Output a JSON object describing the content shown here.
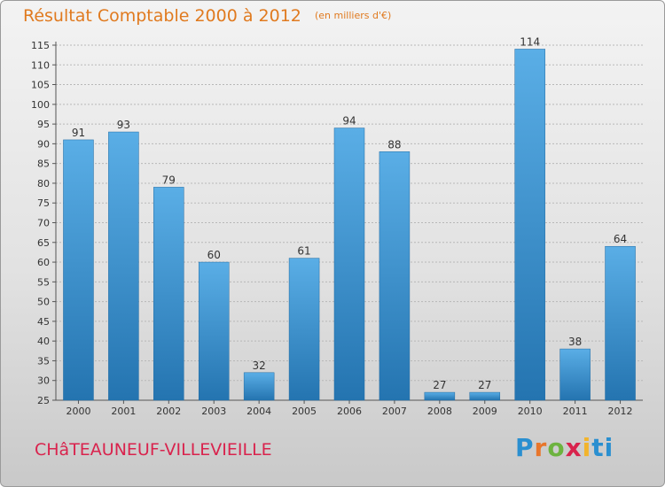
{
  "header": {
    "title": "Résultat Comptable 2000 à 2012",
    "unit": "(en milliers d'€)"
  },
  "footer": {
    "commune": "CHâTEAUNEUF-VILLEVIEILLE",
    "logo_letters": [
      "P",
      "r",
      "o",
      "x",
      "i",
      "ti"
    ]
  },
  "colors": {
    "bar_light": "#5aaee6",
    "bar_dark": "#2474b0",
    "title": "#e07a1f",
    "commune": "#d9234d",
    "grid": "#b8b8b8"
  },
  "chart_data": {
    "type": "bar",
    "title": "Résultat Comptable 2000 à 2012",
    "subtitle": "(en milliers d'€)",
    "categories": [
      "2000",
      "2001",
      "2002",
      "2003",
      "2004",
      "2005",
      "2006",
      "2007",
      "2008",
      "2009",
      "2010",
      "2011",
      "2012"
    ],
    "values": [
      91,
      93,
      79,
      60,
      32,
      61,
      94,
      88,
      27,
      27,
      114,
      38,
      64
    ],
    "ylim": [
      25,
      115
    ],
    "yticks": [
      25,
      30,
      35,
      40,
      45,
      50,
      55,
      60,
      65,
      70,
      75,
      80,
      85,
      90,
      95,
      100,
      105,
      110,
      115
    ],
    "grid": true,
    "xlabel": "",
    "ylabel": ""
  }
}
